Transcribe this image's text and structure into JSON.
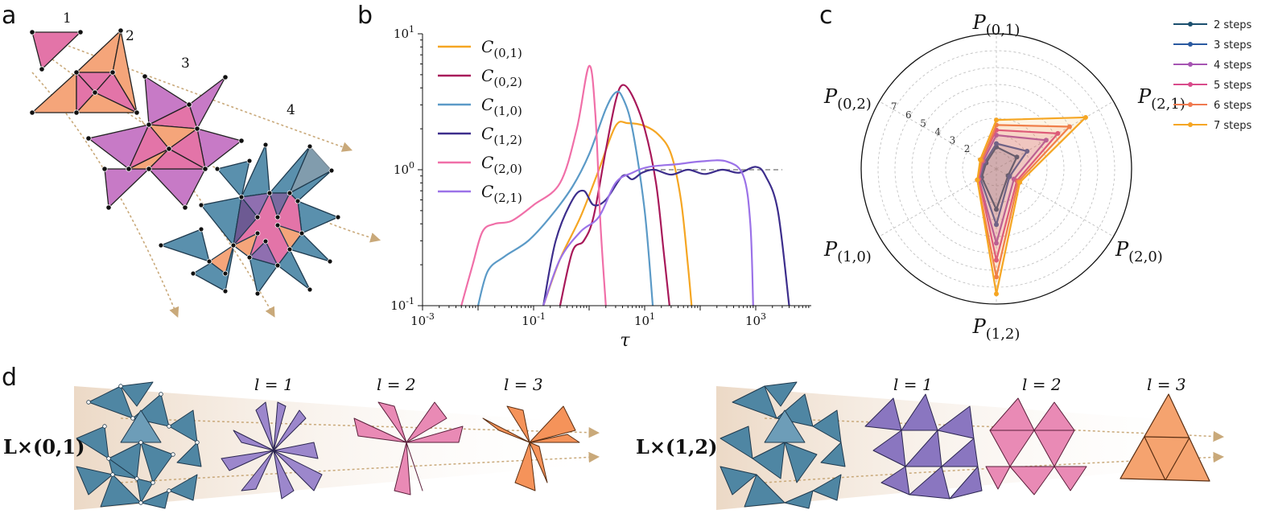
{
  "panel_labels": [
    "a",
    "b",
    "c",
    "d"
  ],
  "panel_a": {
    "stage_labels": [
      "1",
      "2",
      "3",
      "4"
    ]
  },
  "chart_data": [
    {
      "type": "line",
      "panel": "b",
      "xlabel": "τ",
      "ylabel": "",
      "x_scale": "log",
      "y_scale": "log",
      "xlim": [
        0.001,
        10000
      ],
      "ylim": [
        0.1,
        10
      ],
      "x_tick_labels": [
        "10^-3",
        "10^-1",
        "10^1",
        "10^3"
      ],
      "y_tick_labels": [
        "10^-1",
        "10^0",
        "10^1"
      ],
      "reference_line": {
        "y": 1,
        "style": "dashed",
        "color": "#888888"
      },
      "series": [
        {
          "name": "C(0,1)",
          "color": "#f5a623",
          "points": [
            [
              0.15,
              0.1
            ],
            [
              0.3,
              0.22
            ],
            [
              0.7,
              0.45
            ],
            [
              1.5,
              1.0
            ],
            [
              3,
              2.1
            ],
            [
              5,
              2.2
            ],
            [
              10,
              2.1
            ],
            [
              18,
              1.8
            ],
            [
              30,
              1.3
            ],
            [
              45,
              0.6
            ],
            [
              60,
              0.2
            ],
            [
              70,
              0.1
            ]
          ]
        },
        {
          "name": "C(0,2)",
          "color": "#a8195a",
          "points": [
            [
              0.3,
              0.1
            ],
            [
              0.5,
              0.25
            ],
            [
              0.8,
              0.3
            ],
            [
              1.2,
              0.45
            ],
            [
              2,
              1.4
            ],
            [
              3,
              3.2
            ],
            [
              4,
              4.2
            ],
            [
              6,
              3.5
            ],
            [
              10,
              2.0
            ],
            [
              16,
              0.8
            ],
            [
              22,
              0.25
            ],
            [
              28,
              0.1
            ]
          ]
        },
        {
          "name": "C(1,0)",
          "color": "#5b9ac7",
          "points": [
            [
              0.01,
              0.1
            ],
            [
              0.015,
              0.18
            ],
            [
              0.03,
              0.23
            ],
            [
              0.08,
              0.3
            ],
            [
              0.2,
              0.45
            ],
            [
              0.5,
              0.75
            ],
            [
              1,
              1.3
            ],
            [
              2,
              2.8
            ],
            [
              3,
              3.7
            ],
            [
              4,
              3.4
            ],
            [
              6,
              2.0
            ],
            [
              10,
              0.5
            ],
            [
              14,
              0.1
            ]
          ]
        },
        {
          "name": "C(1,2)",
          "color": "#3d2e8c",
          "points": [
            [
              0.15,
              0.1
            ],
            [
              0.25,
              0.3
            ],
            [
              0.5,
              0.6
            ],
            [
              0.8,
              0.7
            ],
            [
              1.2,
              0.55
            ],
            [
              2,
              0.6
            ],
            [
              4,
              0.9
            ],
            [
              6,
              0.85
            ],
            [
              9,
              0.95
            ],
            [
              15,
              1.0
            ],
            [
              30,
              0.92
            ],
            [
              60,
              1.0
            ],
            [
              120,
              0.93
            ],
            [
              250,
              1.0
            ],
            [
              500,
              0.95
            ],
            [
              1000,
              1.05
            ],
            [
              1500,
              0.9
            ],
            [
              2500,
              0.5
            ],
            [
              4000,
              0.1
            ]
          ]
        },
        {
          "name": "C(2,0)",
          "color": "#f06fa8",
          "points": [
            [
              0.005,
              0.1
            ],
            [
              0.008,
              0.2
            ],
            [
              0.012,
              0.35
            ],
            [
              0.02,
              0.4
            ],
            [
              0.04,
              0.42
            ],
            [
              0.1,
              0.55
            ],
            [
              0.3,
              0.8
            ],
            [
              0.6,
              2.0
            ],
            [
              1,
              5.8
            ],
            [
              1.3,
              2.5
            ],
            [
              1.6,
              0.4
            ],
            [
              2,
              0.1
            ]
          ]
        },
        {
          "name": "C(2,1)",
          "color": "#9b72e8",
          "points": [
            [
              0.15,
              0.1
            ],
            [
              0.3,
              0.22
            ],
            [
              0.7,
              0.35
            ],
            [
              1.5,
              0.45
            ],
            [
              3,
              0.8
            ],
            [
              6,
              0.95
            ],
            [
              12,
              1.05
            ],
            [
              40,
              1.1
            ],
            [
              100,
              1.15
            ],
            [
              300,
              1.15
            ],
            [
              600,
              0.9
            ],
            [
              800,
              0.4
            ],
            [
              900,
              0.1
            ]
          ]
        }
      ]
    },
    {
      "type": "radar",
      "panel": "c",
      "axes": [
        "P(0,1)",
        "P(2,1)",
        "P(2,0)",
        "P(1,2)",
        "P(1,0)",
        "P(0,2)"
      ],
      "radial_tick_labels": [
        "2",
        "3",
        "4",
        "5",
        "6",
        "7"
      ],
      "series": [
        {
          "name": "2 steps",
          "color": "#1b4f6e",
          "values": [
            1.3,
            1.4,
            0.8,
            2.4,
            1.0,
            0.7
          ]
        },
        {
          "name": "3 steps",
          "color": "#2a5aa0",
          "values": [
            1.5,
            2.1,
            0.9,
            3.3,
            1.1,
            0.8
          ]
        },
        {
          "name": "4 steps",
          "color": "#a655b3",
          "values": [
            2.0,
            3.4,
            1.2,
            4.4,
            1.2,
            0.9
          ]
        },
        {
          "name": "5 steps",
          "color": "#d94c8c",
          "values": [
            2.3,
            4.2,
            1.4,
            5.4,
            1.2,
            1.0
          ]
        },
        {
          "name": "6 steps",
          "color": "#f07a50",
          "values": [
            2.6,
            5.0,
            1.5,
            6.4,
            1.3,
            1.0
          ]
        },
        {
          "name": "7 steps",
          "color": "#f5a623",
          "values": [
            2.9,
            6.1,
            1.6,
            7.4,
            1.3,
            1.1
          ]
        }
      ]
    }
  ],
  "panel_d": {
    "left_operator": "L×(0,1)",
    "right_operator": "L×(1,2)",
    "levels": [
      "l = 1",
      "l = 2",
      "l = 3"
    ]
  }
}
